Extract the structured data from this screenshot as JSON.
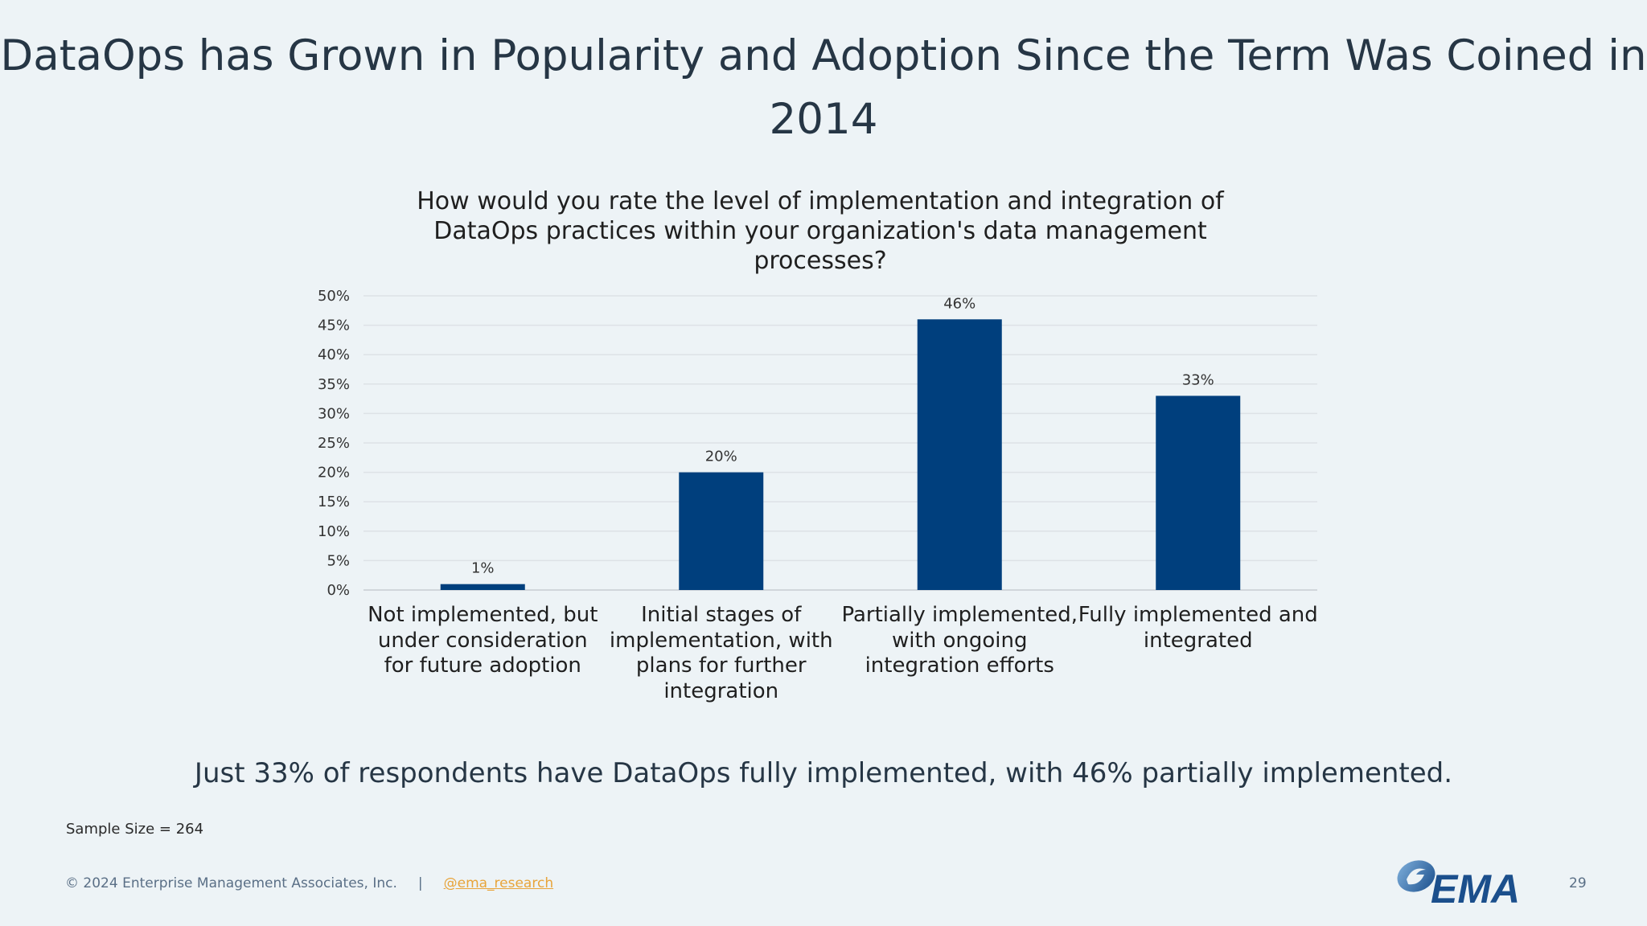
{
  "title": "DataOps has Grown in Popularity and Adoption Since the Term Was Coined in 2014",
  "takeaway": "Just 33% of respondents have DataOps fully implemented, with 46% partially implemented.",
  "sample_size": "Sample Size = 264",
  "footer": {
    "copyright": "© 2024 Enterprise Management Associates, Inc.",
    "separator": "|",
    "handle": "@ema_research",
    "page_number": "29"
  },
  "logo": {
    "text": "EMA",
    "color": "#1b4f8c"
  },
  "chart_data": {
    "type": "bar",
    "title": "How would you rate the level of implementation and integration of DataOps practices within your organization's data management processes?",
    "categories": [
      "Not implemented, but under consideration for future adoption",
      "Initial stages of implementation, with plans for further integration",
      "Partially implemented, with ongoing integration efforts",
      "Fully implemented and integrated"
    ],
    "values": [
      1,
      20,
      46,
      33
    ],
    "data_labels": [
      "1%",
      "20%",
      "46%",
      "33%"
    ],
    "ylim": [
      0,
      50
    ],
    "yticks": [
      "0%",
      "5%",
      "10%",
      "15%",
      "20%",
      "25%",
      "30%",
      "35%",
      "40%",
      "45%",
      "50%"
    ],
    "grid": true,
    "bar_color": "#003f7d",
    "xlabel": "",
    "ylabel": ""
  }
}
